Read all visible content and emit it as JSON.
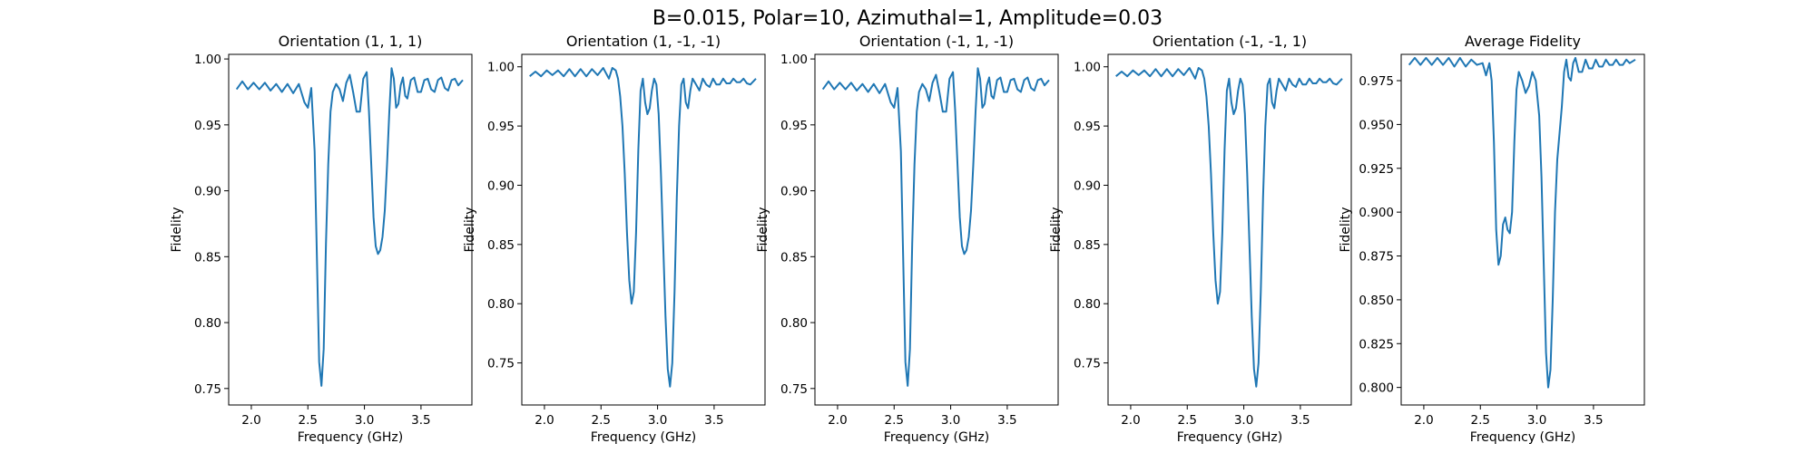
{
  "figure": {
    "title": "B=0.015, Polar=10, Azimuthal=1, Amplitude=0.03"
  },
  "chart_data": [
    {
      "type": "line",
      "title": "Orientation (1, 1, 1)",
      "xlabel": "Frequency (GHz)",
      "ylabel": "Fidelity",
      "xlim": [
        1.8,
        3.95
      ],
      "ylim": [
        0.7375,
        1.0035
      ],
      "xticks": [
        "2.0",
        "2.5",
        "3.0",
        "3.5"
      ],
      "yticks": [
        "0.75",
        "0.80",
        "0.85",
        "0.90",
        "0.95",
        "1.00"
      ],
      "color": "#1f77b4",
      "x": [
        1.87,
        1.92,
        1.97,
        2.02,
        2.07,
        2.12,
        2.17,
        2.22,
        2.27,
        2.32,
        2.37,
        2.42,
        2.47,
        2.5,
        2.53,
        2.56,
        2.58,
        2.6,
        2.62,
        2.64,
        2.66,
        2.68,
        2.7,
        2.72,
        2.75,
        2.78,
        2.81,
        2.84,
        2.87,
        2.9,
        2.93,
        2.96,
        2.99,
        3.02,
        3.04,
        3.06,
        3.08,
        3.1,
        3.12,
        3.14,
        3.16,
        3.18,
        3.2,
        3.22,
        3.24,
        3.26,
        3.28,
        3.3,
        3.32,
        3.34,
        3.36,
        3.38,
        3.41,
        3.44,
        3.47,
        3.5,
        3.53,
        3.56,
        3.59,
        3.62,
        3.65,
        3.68,
        3.71,
        3.74,
        3.77,
        3.8,
        3.83,
        3.87
      ],
      "values": [
        0.977,
        0.983,
        0.977,
        0.982,
        0.977,
        0.982,
        0.976,
        0.981,
        0.975,
        0.981,
        0.974,
        0.981,
        0.967,
        0.963,
        0.978,
        0.93,
        0.85,
        0.77,
        0.752,
        0.78,
        0.86,
        0.92,
        0.96,
        0.975,
        0.981,
        0.977,
        0.968,
        0.982,
        0.988,
        0.975,
        0.96,
        0.96,
        0.985,
        0.99,
        0.96,
        0.92,
        0.88,
        0.858,
        0.852,
        0.855,
        0.865,
        0.885,
        0.92,
        0.96,
        0.993,
        0.985,
        0.963,
        0.966,
        0.98,
        0.986,
        0.972,
        0.97,
        0.984,
        0.986,
        0.975,
        0.975,
        0.984,
        0.985,
        0.977,
        0.975,
        0.984,
        0.986,
        0.978,
        0.976,
        0.984,
        0.985,
        0.98,
        0.984
      ]
    },
    {
      "type": "line",
      "title": "Orientation (1, -1, -1)",
      "xlabel": "Frequency (GHz)",
      "ylabel": "Fidelity",
      "xlim": [
        1.8,
        3.95
      ],
      "ylim": [
        0.7145,
        1.0105
      ],
      "xticks": [
        "2.0",
        "2.5",
        "3.0",
        "3.5"
      ],
      "yticks": [
        "0.75",
        "0.80",
        "0.85",
        "0.90",
        "0.95",
        "1.00"
      ],
      "color": "#1f77b4",
      "x": [
        1.87,
        1.92,
        1.97,
        2.02,
        2.07,
        2.12,
        2.17,
        2.22,
        2.27,
        2.32,
        2.37,
        2.42,
        2.47,
        2.52,
        2.57,
        2.6,
        2.63,
        2.65,
        2.67,
        2.69,
        2.71,
        2.73,
        2.75,
        2.77,
        2.79,
        2.81,
        2.83,
        2.85,
        2.87,
        2.89,
        2.91,
        2.93,
        2.95,
        2.97,
        2.99,
        3.01,
        3.03,
        3.05,
        3.07,
        3.09,
        3.11,
        3.13,
        3.15,
        3.17,
        3.19,
        3.21,
        3.23,
        3.25,
        3.27,
        3.29,
        3.31,
        3.34,
        3.37,
        3.4,
        3.43,
        3.46,
        3.49,
        3.52,
        3.55,
        3.58,
        3.61,
        3.64,
        3.67,
        3.7,
        3.73,
        3.76,
        3.79,
        3.82,
        3.87
      ],
      "values": [
        0.992,
        0.996,
        0.992,
        0.997,
        0.993,
        0.997,
        0.992,
        0.998,
        0.992,
        0.998,
        0.992,
        0.998,
        0.993,
        0.999,
        0.99,
        0.999,
        0.997,
        0.99,
        0.975,
        0.95,
        0.91,
        0.86,
        0.82,
        0.8,
        0.81,
        0.86,
        0.93,
        0.98,
        0.99,
        0.97,
        0.96,
        0.965,
        0.98,
        0.99,
        0.985,
        0.96,
        0.91,
        0.85,
        0.79,
        0.745,
        0.73,
        0.75,
        0.81,
        0.89,
        0.95,
        0.985,
        0.99,
        0.97,
        0.965,
        0.98,
        0.99,
        0.985,
        0.98,
        0.99,
        0.985,
        0.983,
        0.99,
        0.985,
        0.985,
        0.99,
        0.986,
        0.986,
        0.99,
        0.987,
        0.987,
        0.99,
        0.986,
        0.985,
        0.99
      ]
    },
    {
      "type": "line",
      "title": "Orientation (-1, 1, -1)",
      "xlabel": "Frequency (GHz)",
      "ylabel": "Fidelity",
      "xlim": [
        1.8,
        3.95
      ],
      "ylim": [
        0.7375,
        1.0035
      ],
      "xticks": [
        "2.0",
        "2.5",
        "3.0",
        "3.5"
      ],
      "yticks": [
        "0.75",
        "0.80",
        "0.85",
        "0.90",
        "0.95",
        "1.00"
      ],
      "color": "#1f77b4",
      "x": [
        1.87,
        1.92,
        1.97,
        2.02,
        2.07,
        2.12,
        2.17,
        2.22,
        2.27,
        2.32,
        2.37,
        2.42,
        2.47,
        2.5,
        2.53,
        2.56,
        2.58,
        2.6,
        2.62,
        2.64,
        2.66,
        2.68,
        2.7,
        2.72,
        2.75,
        2.78,
        2.81,
        2.84,
        2.87,
        2.9,
        2.93,
        2.96,
        2.99,
        3.02,
        3.04,
        3.06,
        3.08,
        3.1,
        3.12,
        3.14,
        3.16,
        3.18,
        3.2,
        3.22,
        3.24,
        3.26,
        3.28,
        3.3,
        3.32,
        3.34,
        3.36,
        3.38,
        3.41,
        3.44,
        3.47,
        3.5,
        3.53,
        3.56,
        3.59,
        3.62,
        3.65,
        3.68,
        3.71,
        3.74,
        3.77,
        3.8,
        3.83,
        3.87
      ],
      "values": [
        0.977,
        0.983,
        0.977,
        0.982,
        0.977,
        0.982,
        0.976,
        0.981,
        0.975,
        0.981,
        0.974,
        0.981,
        0.967,
        0.963,
        0.978,
        0.93,
        0.85,
        0.77,
        0.752,
        0.78,
        0.86,
        0.92,
        0.96,
        0.975,
        0.981,
        0.977,
        0.968,
        0.982,
        0.988,
        0.975,
        0.96,
        0.96,
        0.985,
        0.99,
        0.96,
        0.92,
        0.88,
        0.858,
        0.852,
        0.855,
        0.865,
        0.885,
        0.92,
        0.96,
        0.993,
        0.985,
        0.963,
        0.966,
        0.98,
        0.986,
        0.972,
        0.97,
        0.984,
        0.986,
        0.975,
        0.975,
        0.984,
        0.985,
        0.977,
        0.975,
        0.984,
        0.986,
        0.978,
        0.976,
        0.984,
        0.985,
        0.98,
        0.984
      ]
    },
    {
      "type": "line",
      "title": "Orientation (-1, -1, 1)",
      "xlabel": "Frequency (GHz)",
      "ylabel": "Fidelity",
      "xlim": [
        1.8,
        3.95
      ],
      "ylim": [
        0.7145,
        1.0105
      ],
      "xticks": [
        "2.0",
        "2.5",
        "3.0",
        "3.5"
      ],
      "yticks": [
        "0.75",
        "0.80",
        "0.85",
        "0.90",
        "0.95",
        "1.00"
      ],
      "color": "#1f77b4",
      "x": [
        1.87,
        1.92,
        1.97,
        2.02,
        2.07,
        2.12,
        2.17,
        2.22,
        2.27,
        2.32,
        2.37,
        2.42,
        2.47,
        2.52,
        2.57,
        2.6,
        2.63,
        2.65,
        2.67,
        2.69,
        2.71,
        2.73,
        2.75,
        2.77,
        2.79,
        2.81,
        2.83,
        2.85,
        2.87,
        2.89,
        2.91,
        2.93,
        2.95,
        2.97,
        2.99,
        3.01,
        3.03,
        3.05,
        3.07,
        3.09,
        3.11,
        3.13,
        3.15,
        3.17,
        3.19,
        3.21,
        3.23,
        3.25,
        3.27,
        3.29,
        3.31,
        3.34,
        3.37,
        3.4,
        3.43,
        3.46,
        3.49,
        3.52,
        3.55,
        3.58,
        3.61,
        3.64,
        3.67,
        3.7,
        3.73,
        3.76,
        3.79,
        3.82,
        3.87
      ],
      "values": [
        0.992,
        0.996,
        0.992,
        0.997,
        0.993,
        0.997,
        0.992,
        0.998,
        0.992,
        0.998,
        0.992,
        0.998,
        0.993,
        0.999,
        0.99,
        0.999,
        0.997,
        0.99,
        0.975,
        0.95,
        0.91,
        0.86,
        0.82,
        0.8,
        0.81,
        0.86,
        0.93,
        0.98,
        0.99,
        0.97,
        0.96,
        0.965,
        0.98,
        0.99,
        0.985,
        0.96,
        0.91,
        0.85,
        0.79,
        0.745,
        0.73,
        0.75,
        0.81,
        0.89,
        0.95,
        0.985,
        0.99,
        0.97,
        0.965,
        0.98,
        0.99,
        0.985,
        0.98,
        0.99,
        0.985,
        0.983,
        0.99,
        0.985,
        0.985,
        0.99,
        0.986,
        0.986,
        0.99,
        0.987,
        0.987,
        0.99,
        0.986,
        0.985,
        0.99
      ]
    },
    {
      "type": "line",
      "title": "Average Fidelity",
      "xlabel": "Frequency (GHz)",
      "ylabel": "Fidelity",
      "xlim": [
        1.8,
        3.95
      ],
      "ylim": [
        0.79,
        0.99
      ],
      "xticks": [
        "2.0",
        "2.5",
        "3.0",
        "3.5"
      ],
      "yticks": [
        "0.800",
        "0.825",
        "0.850",
        "0.875",
        "0.900",
        "0.925",
        "0.950",
        "0.975"
      ],
      "color": "#1f77b4",
      "x": [
        1.87,
        1.92,
        1.97,
        2.02,
        2.07,
        2.12,
        2.17,
        2.22,
        2.27,
        2.32,
        2.37,
        2.42,
        2.47,
        2.52,
        2.55,
        2.58,
        2.6,
        2.62,
        2.64,
        2.66,
        2.68,
        2.7,
        2.72,
        2.74,
        2.76,
        2.78,
        2.8,
        2.82,
        2.84,
        2.87,
        2.9,
        2.93,
        2.96,
        2.99,
        3.02,
        3.04,
        3.06,
        3.08,
        3.1,
        3.12,
        3.14,
        3.16,
        3.18,
        3.2,
        3.22,
        3.24,
        3.26,
        3.28,
        3.3,
        3.32,
        3.34,
        3.37,
        3.4,
        3.43,
        3.46,
        3.49,
        3.52,
        3.55,
        3.58,
        3.61,
        3.64,
        3.67,
        3.7,
        3.73,
        3.76,
        3.79,
        3.82,
        3.87
      ],
      "values": [
        0.984,
        0.988,
        0.984,
        0.988,
        0.984,
        0.988,
        0.984,
        0.988,
        0.983,
        0.988,
        0.983,
        0.987,
        0.984,
        0.985,
        0.978,
        0.985,
        0.975,
        0.94,
        0.89,
        0.87,
        0.875,
        0.893,
        0.897,
        0.89,
        0.888,
        0.9,
        0.94,
        0.97,
        0.98,
        0.975,
        0.968,
        0.972,
        0.98,
        0.975,
        0.955,
        0.92,
        0.87,
        0.82,
        0.8,
        0.81,
        0.85,
        0.9,
        0.93,
        0.945,
        0.96,
        0.98,
        0.987,
        0.977,
        0.975,
        0.985,
        0.988,
        0.98,
        0.98,
        0.987,
        0.982,
        0.982,
        0.987,
        0.983,
        0.983,
        0.987,
        0.984,
        0.984,
        0.987,
        0.984,
        0.984,
        0.987,
        0.985,
        0.987
      ]
    }
  ]
}
